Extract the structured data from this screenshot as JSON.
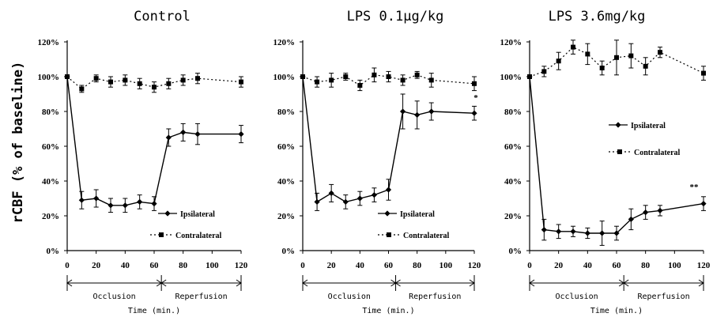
{
  "chart_data": {
    "ylabel": "rCBF (% of baseline)",
    "panels": [
      {
        "type": "line",
        "title": "Control",
        "xlabel": "Time (min.)",
        "x_ticks": [
          "0",
          "20",
          "40",
          "60",
          "80",
          "100",
          "120"
        ],
        "y_ticks": [
          "0%",
          "20%",
          "40%",
          "60%",
          "80%",
          "100%",
          "120%"
        ],
        "ylim": [
          0,
          120
        ],
        "xlim": [
          0,
          120
        ],
        "phases": [
          "Occlusion",
          "Reperfusion"
        ],
        "legend": {
          "ipsi": "Ipsilateral",
          "contra": "Contralateral"
        },
        "annotation": "",
        "series": [
          {
            "name": "Ipsilateral",
            "x": [
              0,
              10,
              20,
              30,
              40,
              50,
              60,
              70,
              80,
              90,
              120
            ],
            "y": [
              100,
              29,
              30,
              26,
              26,
              28,
              27,
              65,
              68,
              67,
              67
            ],
            "err": [
              0,
              5,
              5,
              4,
              4,
              4,
              4,
              5,
              5,
              6,
              5
            ]
          },
          {
            "name": "Contralateral",
            "x": [
              0,
              10,
              20,
              30,
              40,
              50,
              60,
              70,
              80,
              90,
              120
            ],
            "y": [
              100,
              93,
              99,
              97,
              98,
              96,
              94,
              96,
              98,
              99,
              97
            ],
            "err": [
              0,
              2,
              2,
              3,
              3,
              3,
              3,
              3,
              3,
              3,
              3
            ]
          }
        ]
      },
      {
        "type": "line",
        "title": "LPS 0.1μg/kg",
        "xlabel": "Time (min.)",
        "x_ticks": [
          "0",
          "20",
          "40",
          "60",
          "80",
          "100",
          "120"
        ],
        "y_ticks": [
          "0%",
          "20%",
          "40%",
          "60%",
          "80%",
          "100%",
          "120%"
        ],
        "ylim": [
          0,
          120
        ],
        "xlim": [
          0,
          120
        ],
        "phases": [
          "Occlusion",
          "Reperfusion"
        ],
        "legend": {
          "ipsi": "Ipsilateral",
          "contra": "Contralateral"
        },
        "annotation": "*",
        "series": [
          {
            "name": "Ipsilateral",
            "x": [
              0,
              10,
              20,
              30,
              40,
              50,
              60,
              70,
              80,
              90,
              120
            ],
            "y": [
              100,
              28,
              33,
              28,
              30,
              32,
              35,
              80,
              78,
              80,
              79
            ],
            "err": [
              0,
              5,
              5,
              4,
              4,
              4,
              6,
              10,
              8,
              5,
              4
            ]
          },
          {
            "name": "Contralateral",
            "x": [
              0,
              10,
              20,
              30,
              40,
              50,
              60,
              70,
              80,
              90,
              120
            ],
            "y": [
              100,
              97,
              98,
              100,
              95,
              101,
              100,
              98,
              101,
              98,
              96
            ],
            "err": [
              0,
              3,
              4,
              2,
              3,
              4,
              3,
              3,
              2,
              4,
              4
            ]
          }
        ]
      },
      {
        "type": "line",
        "title": "LPS 3.6mg/kg",
        "xlabel": "Time (min.)",
        "x_ticks": [
          "0",
          "20",
          "40",
          "60",
          "80",
          "100",
          "120"
        ],
        "y_ticks": [
          "0%",
          "20%",
          "40%",
          "60%",
          "80%",
          "100%",
          "120%"
        ],
        "ylim": [
          0,
          120
        ],
        "xlim": [
          0,
          120
        ],
        "phases": [
          "Occlusion",
          "Reperfusion"
        ],
        "legend": {
          "ipsi": "Ipsilateral",
          "contra": "Contralateral"
        },
        "annotation": "**",
        "series": [
          {
            "name": "Ipsilateral",
            "x": [
              0,
              10,
              20,
              30,
              40,
              50,
              60,
              70,
              80,
              90,
              120
            ],
            "y": [
              100,
              12,
              11,
              11,
              10,
              10,
              10,
              18,
              22,
              23,
              27
            ],
            "err": [
              0,
              6,
              4,
              3,
              3,
              7,
              4,
              6,
              4,
              3,
              4
            ]
          },
          {
            "name": "Contralateral",
            "x": [
              0,
              10,
              20,
              30,
              40,
              50,
              60,
              70,
              80,
              90,
              120
            ],
            "y": [
              100,
              103,
              109,
              117,
              113,
              105,
              111,
              112,
              106,
              114,
              102
            ],
            "err": [
              0,
              3,
              5,
              4,
              6,
              4,
              10,
              7,
              5,
              3,
              4
            ]
          }
        ]
      }
    ]
  }
}
